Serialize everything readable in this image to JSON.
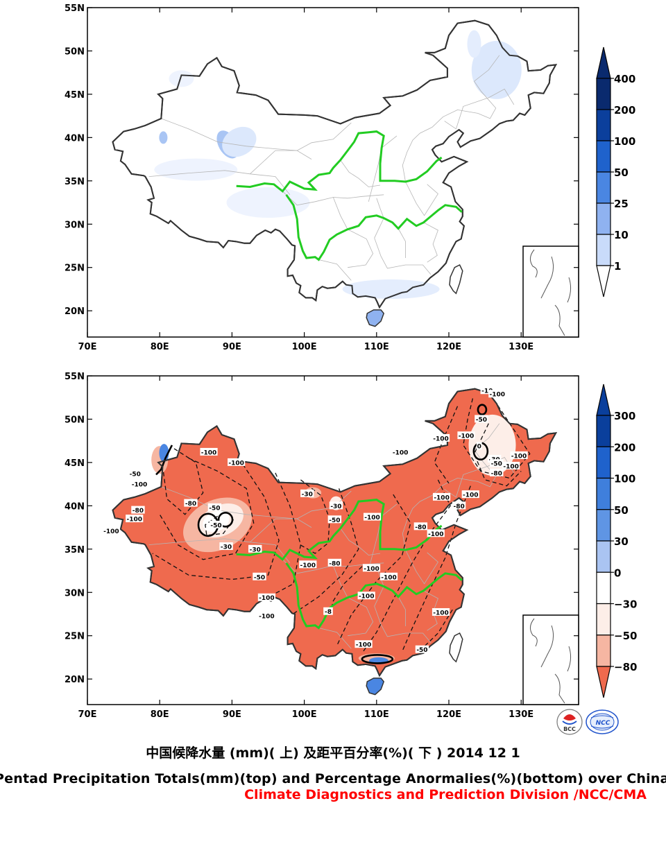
{
  "figure": {
    "caption_cn": "中国候降水量 (mm)( 上) 及距平百分率(%)( 下 ) 2014 12 1",
    "caption_en": "Pentad Precipitation Totals(mm)(top) and Percentage Anormalies(%)(bottom) over China",
    "caption_org": "Climate Diagnostics and Prediction Division /NCC/CMA",
    "logos": [
      {
        "name": "bcc-logo",
        "text": "BCC"
      },
      {
        "name": "ncc-logo",
        "text": "NCC"
      }
    ]
  },
  "axes": {
    "lat_labels": [
      "55N",
      "50N",
      "45N",
      "40N",
      "35N",
      "30N",
      "25N",
      "20N"
    ],
    "lon_labels": [
      "70E",
      "80E",
      "90E",
      "100E",
      "110E",
      "120E",
      "130E"
    ],
    "lat_values": [
      55,
      50,
      45,
      40,
      35,
      30,
      25,
      20
    ],
    "lon_values": [
      70,
      80,
      90,
      100,
      110,
      120,
      130
    ],
    "lat_range": [
      17,
      55
    ],
    "lon_range": [
      70,
      138
    ]
  },
  "top_map": {
    "variable": "precipitation totals (mm)",
    "colorbar": {
      "labels": [
        "400",
        "200",
        "100",
        "50",
        "25",
        "10",
        "1"
      ],
      "colors": [
        "#0a2a6e",
        "#0b3f9c",
        "#1f62cc",
        "#4a86e2",
        "#8fb2f0",
        "#c9dbfa",
        "#ffffff"
      ]
    }
  },
  "bottom_map": {
    "variable": "percentage anomalies (%)",
    "colorbar": {
      "labels": [
        "300",
        "200",
        "100",
        "50",
        "30",
        "0",
        "−30",
        "−50",
        "−80"
      ],
      "colors": [
        "#0a3f9c",
        "#1f62cc",
        "#3f7fdc",
        "#5f95e4",
        "#aac4f2",
        "#ffffff",
        "#fdeee8",
        "#f6b6a2",
        "#f08a70",
        "#ef6a4e"
      ]
    },
    "contour_labels": [
      {
        "text": "-100",
        "lon": 77.2,
        "lat": 42.5
      },
      {
        "text": "-100",
        "lon": 73.3,
        "lat": 37.1
      },
      {
        "text": "-100",
        "lon": 86.8,
        "lat": 46.2
      },
      {
        "text": "-100",
        "lon": 90.6,
        "lat": 45.0
      },
      {
        "text": "-80",
        "lon": 84.3,
        "lat": 40.3
      },
      {
        "text": "-50",
        "lon": 87.6,
        "lat": 39.8
      },
      {
        "text": "-50",
        "lon": 76.6,
        "lat": 43.7
      },
      {
        "text": "-80",
        "lon": 77.0,
        "lat": 39.5
      },
      {
        "text": "-100",
        "lon": 76.5,
        "lat": 38.5
      },
      {
        "text": "-30",
        "lon": 89.2,
        "lat": 35.3
      },
      {
        "text": "-50",
        "lon": 87.8,
        "lat": 37.8
      },
      {
        "text": "-30",
        "lon": 93.2,
        "lat": 35.0
      },
      {
        "text": "-50",
        "lon": 93.8,
        "lat": 31.8
      },
      {
        "text": "-100",
        "lon": 94.8,
        "lat": 29.4
      },
      {
        "text": "-100",
        "lon": 94.8,
        "lat": 27.3
      },
      {
        "text": "-30",
        "lon": 100.4,
        "lat": 41.4
      },
      {
        "text": "-30",
        "lon": 104.4,
        "lat": 40.0
      },
      {
        "text": "-50",
        "lon": 104.2,
        "lat": 38.4
      },
      {
        "text": "-100",
        "lon": 100.5,
        "lat": 33.2
      },
      {
        "text": "-80",
        "lon": 104.2,
        "lat": 33.4
      },
      {
        "text": "-100",
        "lon": 109.4,
        "lat": 38.7
      },
      {
        "text": "-100",
        "lon": 108.6,
        "lat": 29.6
      },
      {
        "text": "-100",
        "lon": 111.7,
        "lat": 31.8
      },
      {
        "text": "-100",
        "lon": 109.3,
        "lat": 32.8
      },
      {
        "text": "-8",
        "lon": 103.3,
        "lat": 27.8
      },
      {
        "text": "-100",
        "lon": 108.2,
        "lat": 24.0
      },
      {
        "text": "-100",
        "lon": 118.9,
        "lat": 27.7
      },
      {
        "text": "-50",
        "lon": 116.3,
        "lat": 23.4
      },
      {
        "text": "-100",
        "lon": 113.3,
        "lat": 46.2
      },
      {
        "text": "-100",
        "lon": 118.9,
        "lat": 47.8
      },
      {
        "text": "-100",
        "lon": 122.4,
        "lat": 48.1
      },
      {
        "text": "-100",
        "lon": 119.0,
        "lat": 41.0
      },
      {
        "text": "-100",
        "lon": 123.0,
        "lat": 41.3
      },
      {
        "text": "-80",
        "lon": 121.4,
        "lat": 40.0
      },
      {
        "text": "-80",
        "lon": 116.1,
        "lat": 37.6
      },
      {
        "text": "-100",
        "lon": 118.2,
        "lat": 36.8
      },
      {
        "text": "-100",
        "lon": 128.6,
        "lat": 44.6
      },
      {
        "text": "-100",
        "lon": 129.7,
        "lat": 45.8
      },
      {
        "text": "-80",
        "lon": 126.6,
        "lat": 43.8
      },
      {
        "text": "-30",
        "lon": 126.3,
        "lat": 45.4
      },
      {
        "text": "-50",
        "lon": 126.6,
        "lat": 44.9
      },
      {
        "text": "-50",
        "lon": 124.5,
        "lat": 50.0
      },
      {
        "text": "-10",
        "lon": 125.3,
        "lat": 53.3
      },
      {
        "text": "-100",
        "lon": 126.7,
        "lat": 52.9
      },
      {
        "text": "0",
        "lon": 124.2,
        "lat": 46.9
      }
    ]
  }
}
